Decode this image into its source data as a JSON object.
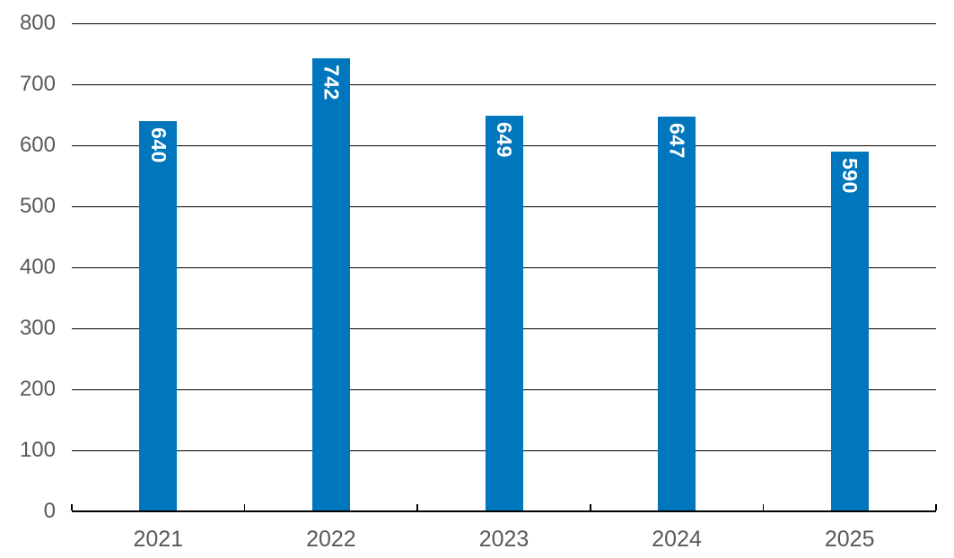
{
  "chart_data": {
    "type": "bar",
    "categories": [
      "2021",
      "2022",
      "2023",
      "2024",
      "2025"
    ],
    "values": [
      640,
      742,
      649,
      647,
      590
    ],
    "data_labels": [
      "640",
      "742",
      "649",
      "647",
      "590"
    ],
    "yticks": [
      0,
      100,
      200,
      300,
      400,
      500,
      600,
      700,
      800
    ],
    "ylim": [
      0,
      800
    ],
    "grid": true,
    "legend": false,
    "title": "",
    "data_label_rotation": "90deg-clockwise",
    "colors": {
      "bar": "#0076BC",
      "data_label_text": "#FFFFFF",
      "axis_text": "#595959",
      "gridline": "#000000",
      "axis_line": "#000000",
      "background": "#FFFFFF"
    }
  }
}
